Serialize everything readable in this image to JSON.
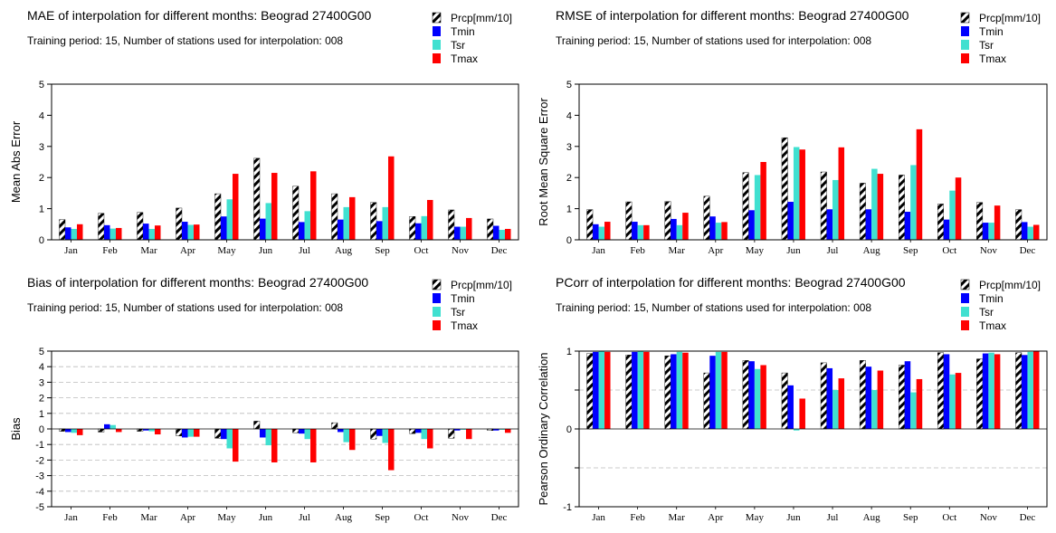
{
  "colors": {
    "Prcp[mm/10]": "#000000",
    "Tmin": "#0000ff",
    "Tsr": "#40e0d0",
    "Tmax": "#ff0000"
  },
  "chart_data": [
    {
      "type": "bar",
      "title": "MAE of interpolation for different months: Beograd  27400G00",
      "subtitle": "Training period: 15, Number of stations used for interpolation: 008",
      "xlabel": "",
      "ylabel": "Mean Abs Error",
      "ylim": [
        0,
        5
      ],
      "yticks": [
        "0",
        "1",
        "2",
        "3",
        "4",
        "5"
      ],
      "grid": false,
      "legend": "top-right",
      "categories": [
        "Jan",
        "Feb",
        "Mar",
        "Apr",
        "May",
        "Jun",
        "Jul",
        "Aug",
        "Sep",
        "Oct",
        "Nov",
        "Dec"
      ],
      "series": [
        {
          "name": "Prcp[mm/10]",
          "values": [
            0.65,
            0.85,
            0.88,
            1.02,
            1.48,
            2.62,
            1.72,
            1.48,
            1.2,
            0.75,
            0.96,
            0.67
          ]
        },
        {
          "name": "Tmin",
          "values": [
            0.4,
            0.47,
            0.52,
            0.58,
            0.75,
            0.68,
            0.57,
            0.65,
            0.6,
            0.53,
            0.42,
            0.45
          ]
        },
        {
          "name": "Tsr",
          "values": [
            0.35,
            0.36,
            0.35,
            0.48,
            1.3,
            1.18,
            0.92,
            1.05,
            1.05,
            0.76,
            0.42,
            0.32
          ]
        },
        {
          "name": "Tmax",
          "values": [
            0.5,
            0.38,
            0.46,
            0.49,
            2.12,
            2.15,
            2.2,
            1.37,
            2.68,
            1.28,
            0.7,
            0.35
          ]
        }
      ]
    },
    {
      "type": "bar",
      "title": "RMSE of interpolation for different months: Beograd  27400G00",
      "subtitle": "Training period: 15, Number of stations used for interpolation: 008",
      "xlabel": "",
      "ylabel": "Root Mean Square Error",
      "ylim": [
        0,
        5
      ],
      "yticks": [
        "0",
        "1",
        "2",
        "3",
        "4",
        "5"
      ],
      "grid": false,
      "legend": "top-right",
      "categories": [
        "Jan",
        "Feb",
        "Mar",
        "Apr",
        "May",
        "Jun",
        "Jul",
        "Aug",
        "Sep",
        "Oct",
        "Nov",
        "Dec"
      ],
      "series": [
        {
          "name": "Prcp[mm/10]",
          "values": [
            0.97,
            1.22,
            1.23,
            1.4,
            2.16,
            3.28,
            2.18,
            1.82,
            2.08,
            1.15,
            1.2,
            0.97
          ]
        },
        {
          "name": "Tmin",
          "values": [
            0.5,
            0.58,
            0.67,
            0.75,
            0.95,
            1.22,
            0.98,
            0.98,
            0.9,
            0.65,
            0.55,
            0.57
          ]
        },
        {
          "name": "Tsr",
          "values": [
            0.42,
            0.47,
            0.47,
            0.55,
            2.08,
            2.98,
            1.92,
            2.28,
            2.4,
            1.58,
            0.55,
            0.42
          ]
        },
        {
          "name": "Tmax",
          "values": [
            0.58,
            0.47,
            0.87,
            0.57,
            2.5,
            2.9,
            2.97,
            2.12,
            3.55,
            2.0,
            1.1,
            0.48
          ]
        }
      ]
    },
    {
      "type": "bar",
      "title": "Bias of interpolation for different months: Beograd  27400G00",
      "subtitle": "Training period: 15, Number of stations used for interpolation: 008",
      "xlabel": "",
      "ylabel": "Bias",
      "ylim": [
        -5,
        5
      ],
      "yticks": [
        "-5",
        "-4",
        "-3",
        "-2",
        "-1",
        "0",
        "1",
        "2",
        "3",
        "4",
        "5"
      ],
      "grid": true,
      "legend": "top-right",
      "categories": [
        "Jan",
        "Feb",
        "Mar",
        "Apr",
        "May",
        "Jun",
        "Jul",
        "Aug",
        "Sep",
        "Oct",
        "Nov",
        "Dec"
      ],
      "series": [
        {
          "name": "Prcp[mm/10]",
          "values": [
            -0.15,
            -0.2,
            -0.15,
            -0.45,
            -0.6,
            0.5,
            -0.25,
            0.4,
            -0.65,
            -0.3,
            -0.6,
            -0.1
          ]
        },
        {
          "name": "Tmin",
          "values": [
            -0.2,
            0.3,
            -0.1,
            -0.55,
            -0.65,
            -0.55,
            -0.3,
            -0.2,
            -0.45,
            -0.25,
            -0.1,
            -0.1
          ]
        },
        {
          "name": "Tsr",
          "values": [
            -0.25,
            0.25,
            -0.15,
            -0.5,
            -1.25,
            -1.05,
            -0.65,
            -0.85,
            -0.9,
            -0.65,
            -0.05,
            -0.05
          ]
        },
        {
          "name": "Tmax",
          "values": [
            -0.4,
            -0.2,
            -0.35,
            -0.5,
            -2.1,
            -2.15,
            -2.15,
            -1.35,
            -2.65,
            -1.25,
            -0.65,
            -0.25
          ]
        }
      ]
    },
    {
      "type": "bar",
      "title": "PCorr of interpolation for different months: Beograd  27400G00",
      "subtitle": "Training period: 15, Number of stations used for interpolation: 008",
      "xlabel": "",
      "ylabel": "Pearson Ordinary Correlation",
      "ylim": [
        -1,
        1
      ],
      "yticks": [
        "-1",
        "",
        "0",
        "",
        "1"
      ],
      "grid": true,
      "legend": "top-right",
      "categories": [
        "Jan",
        "Feb",
        "Mar",
        "Apr",
        "May",
        "Jun",
        "Jul",
        "Aug",
        "Sep",
        "Oct",
        "Nov",
        "Dec"
      ],
      "series": [
        {
          "name": "Prcp[mm/10]",
          "values": [
            0.97,
            0.95,
            0.94,
            0.72,
            0.88,
            0.72,
            0.85,
            0.88,
            0.82,
            0.98,
            0.9,
            0.98
          ]
        },
        {
          "name": "Tmin",
          "values": [
            0.99,
            0.99,
            0.96,
            0.94,
            0.87,
            0.56,
            0.78,
            0.8,
            0.87,
            0.96,
            0.97,
            0.95
          ]
        },
        {
          "name": "Tsr",
          "values": [
            1.0,
            1.0,
            0.99,
            0.99,
            0.77,
            -0.02,
            0.5,
            0.5,
            0.47,
            0.7,
            0.98,
            0.99
          ]
        },
        {
          "name": "Tmax",
          "values": [
            0.99,
            0.99,
            0.98,
            0.99,
            0.82,
            0.39,
            0.65,
            0.75,
            0.64,
            0.72,
            0.96,
            1.0
          ]
        }
      ]
    }
  ]
}
